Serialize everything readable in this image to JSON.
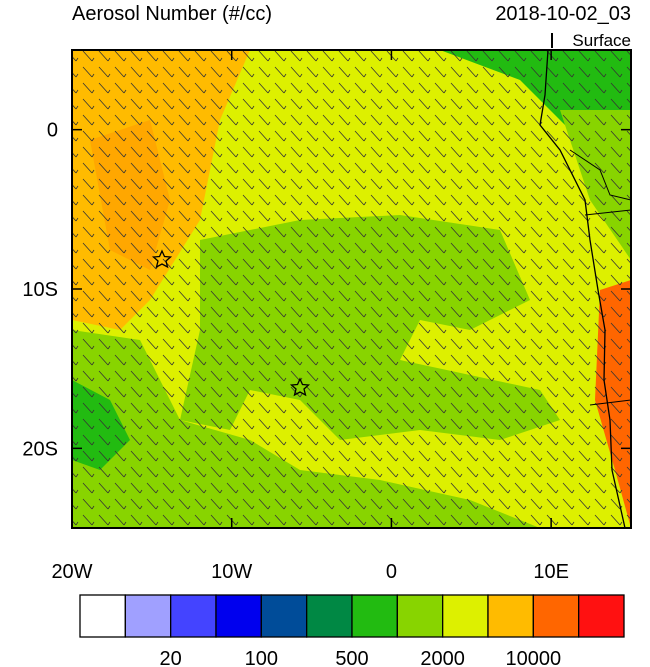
{
  "map": {
    "title": "Aerosol Number (#/cc)",
    "time": "2018-10-02_03",
    "level": "Surface",
    "xlim": [
      -20,
      15
    ],
    "ylim": [
      -25,
      5
    ],
    "xticks": [
      {
        "value": -20,
        "label": "20W"
      },
      {
        "value": -10,
        "label": "10W"
      },
      {
        "value": 0,
        "label": "0"
      },
      {
        "value": 10,
        "label": "10E"
      }
    ],
    "yticks": [
      {
        "value": 0,
        "label": "0"
      },
      {
        "value": -10,
        "label": "10S"
      },
      {
        "value": -20,
        "label": "20S"
      }
    ]
  },
  "colorbar": {
    "colors": [
      "#ffffff",
      "#a0a0ff",
      "#4444ff",
      "#0000ee",
      "#004c99",
      "#008844",
      "#22bb11",
      "#88d400",
      "#ddf000",
      "#ffbb00",
      "#ff6600",
      "#ff1111"
    ],
    "labels": [
      20,
      100,
      500,
      2000,
      10000
    ]
  }
}
